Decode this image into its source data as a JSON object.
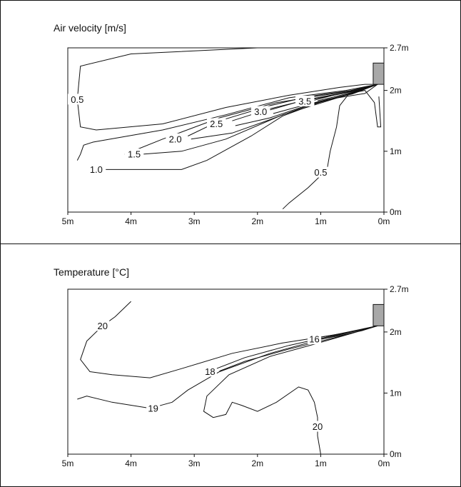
{
  "chart_data": [
    {
      "type": "contour",
      "title": "Air velocity [m/s]",
      "xlabel": "",
      "ylabel": "",
      "x_ticks": [
        "5m",
        "4m",
        "3m",
        "2m",
        "1m",
        "0m"
      ],
      "x_values": [
        5,
        4,
        3,
        2,
        1,
        0
      ],
      "y_ticks": [
        "0m",
        "1m",
        "2m",
        "2.7m"
      ],
      "y_values": [
        0,
        1,
        2,
        2.7
      ],
      "xlim": [
        5,
        0
      ],
      "ylim": [
        0,
        2.7
      ],
      "outlet": {
        "x": [
          0.05,
          0.0
        ],
        "y": [
          2.1,
          2.45
        ]
      },
      "contours": [
        {
          "label": "0.5",
          "label_at": [
            4.85,
            1.85
          ],
          "points": [
            [
              2.0,
              2.7
            ],
            [
              4.0,
              2.6
            ],
            [
              4.8,
              2.4
            ],
            [
              4.85,
              1.85
            ],
            [
              4.8,
              1.4
            ],
            [
              4.55,
              1.35
            ],
            [
              3.5,
              1.45
            ],
            [
              2.5,
              1.72
            ],
            [
              1.5,
              1.92
            ],
            [
              0.7,
              2.05
            ],
            [
              0.3,
              2.1
            ],
            [
              0.1,
              2.1
            ]
          ]
        },
        {
          "label": "0.5",
          "label_at": [
            1.0,
            0.65
          ],
          "points": [
            [
              1.6,
              0.05
            ],
            [
              1.5,
              0.15
            ],
            [
              1.2,
              0.4
            ],
            [
              0.9,
              0.7
            ],
            [
              0.85,
              1.0
            ],
            [
              0.75,
              1.4
            ],
            [
              0.7,
              1.75
            ],
            [
              0.55,
              1.95
            ],
            [
              0.3,
              2.0
            ],
            [
              0.15,
              1.8
            ],
            [
              0.1,
              1.4
            ],
            [
              0.05,
              1.4
            ],
            [
              0.08,
              1.9
            ]
          ]
        },
        {
          "label": "1.0",
          "label_at": [
            4.55,
            0.7
          ],
          "points": [
            [
              4.85,
              0.85
            ],
            [
              4.8,
              0.95
            ],
            [
              4.75,
              1.1
            ],
            [
              4.6,
              1.15
            ],
            [
              3.5,
              1.35
            ],
            [
              2.5,
              1.6
            ],
            [
              1.5,
              1.88
            ],
            [
              0.6,
              2.0
            ],
            [
              0.1,
              2.1
            ],
            [
              0.3,
              1.95
            ],
            [
              0.9,
              1.85
            ],
            [
              1.6,
              1.58
            ],
            [
              2.1,
              1.25
            ],
            [
              2.8,
              0.85
            ],
            [
              3.2,
              0.7
            ],
            [
              4.4,
              0.7
            ]
          ]
        },
        {
          "label": "1.5",
          "label_at": [
            3.95,
            0.95
          ],
          "points": [
            [
              4.1,
              0.95
            ],
            [
              3.5,
              1.2
            ],
            [
              2.6,
              1.55
            ],
            [
              1.7,
              1.8
            ],
            [
              0.6,
              1.98
            ],
            [
              0.1,
              2.1
            ],
            [
              0.6,
              1.92
            ],
            [
              1.6,
              1.6
            ],
            [
              2.5,
              1.2
            ],
            [
              3.2,
              1.0
            ],
            [
              3.85,
              0.95
            ]
          ]
        },
        {
          "label": "2.0",
          "label_at": [
            3.3,
            1.2
          ],
          "points": [
            [
              3.1,
              1.25
            ],
            [
              2.6,
              1.5
            ],
            [
              1.8,
              1.75
            ],
            [
              1.2,
              1.9
            ],
            [
              0.5,
              2.0
            ],
            [
              0.1,
              2.1
            ],
            [
              0.5,
              1.95
            ],
            [
              1.2,
              1.75
            ],
            [
              1.8,
              1.52
            ],
            [
              2.4,
              1.3
            ],
            [
              3.05,
              1.2
            ]
          ]
        },
        {
          "label": "2.5",
          "label_at": [
            2.65,
            1.45
          ],
          "points": [
            [
              2.4,
              1.5
            ],
            [
              1.8,
              1.7
            ],
            [
              1.2,
              1.85
            ],
            [
              0.6,
              1.97
            ],
            [
              0.1,
              2.1
            ],
            [
              0.6,
              1.93
            ],
            [
              1.2,
              1.76
            ],
            [
              1.8,
              1.55
            ],
            [
              2.35,
              1.42
            ]
          ]
        },
        {
          "label": "3.0",
          "label_at": [
            1.95,
            1.65
          ],
          "points": [
            [
              1.8,
              1.68
            ],
            [
              1.4,
              1.8
            ],
            [
              0.9,
              1.9
            ],
            [
              0.5,
              1.98
            ],
            [
              0.1,
              2.1
            ],
            [
              0.5,
              1.94
            ],
            [
              0.9,
              1.85
            ],
            [
              1.4,
              1.72
            ],
            [
              1.75,
              1.62
            ]
          ]
        },
        {
          "label": "3.5",
          "label_at": [
            1.25,
            1.82
          ],
          "points": [
            [
              1.1,
              1.84
            ],
            [
              0.8,
              1.92
            ],
            [
              0.5,
              1.99
            ],
            [
              0.1,
              2.1
            ],
            [
              0.5,
              1.97
            ],
            [
              0.8,
              1.89
            ],
            [
              1.05,
              1.83
            ]
          ]
        }
      ]
    },
    {
      "type": "contour",
      "title": "Temperature [°C]",
      "xlabel": "",
      "ylabel": "",
      "x_ticks": [
        "5m",
        "4m",
        "3m",
        "2m",
        "1m",
        "0m"
      ],
      "x_values": [
        5,
        4,
        3,
        2,
        1,
        0
      ],
      "y_ticks": [
        "0m",
        "1m",
        "2m",
        "2.7m"
      ],
      "y_values": [
        0,
        1,
        2,
        2.7
      ],
      "xlim": [
        5,
        0
      ],
      "ylim": [
        0,
        2.7
      ],
      "outlet": {
        "x": [
          0.05,
          0.0
        ],
        "y": [
          2.1,
          2.45
        ]
      },
      "contours": [
        {
          "label": "20",
          "label_at": [
            4.45,
            2.1
          ],
          "points": [
            [
              4.0,
              2.5
            ],
            [
              4.25,
              2.25
            ],
            [
              4.45,
              2.1
            ],
            [
              4.7,
              1.85
            ],
            [
              4.8,
              1.55
            ],
            [
              4.65,
              1.35
            ],
            [
              4.3,
              1.3
            ],
            [
              3.7,
              1.25
            ],
            [
              3.2,
              1.4
            ],
            [
              2.4,
              1.65
            ],
            [
              1.6,
              1.82
            ],
            [
              0.8,
              1.95
            ],
            [
              0.1,
              2.1
            ]
          ]
        },
        {
          "label": "20",
          "label_at": [
            1.05,
            0.45
          ],
          "points": [
            [
              1.0,
              0.0
            ],
            [
              1.05,
              0.3
            ],
            [
              1.05,
              0.6
            ],
            [
              1.1,
              0.85
            ],
            [
              1.2,
              1.05
            ],
            [
              1.35,
              1.1
            ],
            [
              1.7,
              0.85
            ],
            [
              2.0,
              0.7
            ],
            [
              2.25,
              0.8
            ],
            [
              2.4,
              0.85
            ],
            [
              2.5,
              0.65
            ],
            [
              2.7,
              0.6
            ],
            [
              2.85,
              0.7
            ],
            [
              2.8,
              0.95
            ],
            [
              2.45,
              1.3
            ],
            [
              1.8,
              1.6
            ],
            [
              1.1,
              1.8
            ],
            [
              0.5,
              1.98
            ],
            [
              0.1,
              2.1
            ]
          ]
        },
        {
          "label": "19",
          "label_at": [
            3.65,
            0.75
          ],
          "points": [
            [
              4.85,
              0.9
            ],
            [
              4.7,
              0.95
            ],
            [
              4.3,
              0.85
            ],
            [
              3.7,
              0.75
            ],
            [
              3.35,
              0.85
            ],
            [
              3.1,
              1.05
            ],
            [
              2.6,
              1.35
            ],
            [
              1.8,
              1.65
            ],
            [
              1.0,
              1.88
            ],
            [
              0.1,
              2.1
            ]
          ]
        },
        {
          "label": "18",
          "label_at": [
            2.75,
            1.35
          ],
          "points": [
            [
              2.65,
              1.4
            ],
            [
              2.2,
              1.58
            ],
            [
              1.5,
              1.78
            ],
            [
              0.8,
              1.94
            ],
            [
              0.1,
              2.1
            ],
            [
              0.8,
              1.9
            ],
            [
              1.5,
              1.72
            ],
            [
              2.2,
              1.52
            ],
            [
              2.6,
              1.36
            ]
          ]
        },
        {
          "label": "16",
          "label_at": [
            1.1,
            1.88
          ],
          "points": [
            [
              1.2,
              1.88
            ],
            [
              0.7,
              1.97
            ],
            [
              0.3,
              2.05
            ],
            [
              0.1,
              2.1
            ],
            [
              0.35,
              2.02
            ],
            [
              0.75,
              1.93
            ],
            [
              1.15,
              1.85
            ]
          ]
        }
      ]
    }
  ]
}
